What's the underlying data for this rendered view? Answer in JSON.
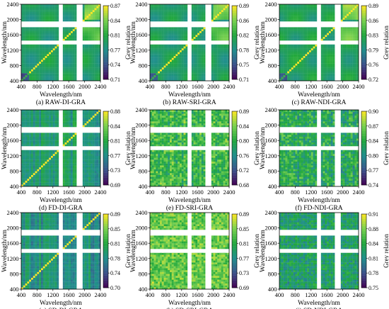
{
  "chart_data": [
    {
      "type": "heatmap",
      "caption": "(a) RAW-DI-GRA",
      "xlabel": "Wavelength/nm",
      "ylabel": "Wavelength/nm",
      "colorbar_label": "Grey relation",
      "xticks": [
        "400",
        "800",
        "1200",
        "1600",
        "2000",
        "2400"
      ],
      "yticks": [
        "400",
        "800",
        "1200",
        "1600",
        "2000",
        "2400"
      ],
      "xlim": [
        400,
        2400
      ],
      "ylim": [
        400,
        2400
      ],
      "colorbar_ticks": [
        "0.87",
        "0.84",
        "0.81",
        "0.77",
        "0.74",
        "0.71"
      ],
      "clim": [
        0.71,
        0.87
      ],
      "base_value": 0.79,
      "texture": "smooth",
      "masked_bands_nm": [
        [
          1350,
          1450
        ],
        [
          1800,
          1950
        ]
      ],
      "colormap": [
        "#440154",
        "#3b528b",
        "#21908d",
        "#22a83d",
        "#7ad151",
        "#fde725"
      ]
    },
    {
      "type": "heatmap",
      "caption": "(b) RAW-SRI-GRA",
      "xlabel": "Wavelength/nm",
      "ylabel": "Wavelength/nm",
      "colorbar_label": "Grey relation",
      "xticks": [
        "400",
        "800",
        "1200",
        "1600",
        "2000",
        "2400"
      ],
      "yticks": [
        "400",
        "800",
        "1200",
        "1600",
        "2000",
        "2400"
      ],
      "xlim": [
        400,
        2400
      ],
      "ylim": [
        400,
        2400
      ],
      "colorbar_ticks": [
        "0.89",
        "0.86",
        "0.82",
        "0.78",
        "0.75",
        "0.71"
      ],
      "clim": [
        0.71,
        0.89
      ],
      "base_value": 0.8,
      "texture": "smooth",
      "masked_bands_nm": [
        [
          1350,
          1450
        ],
        [
          1800,
          1950
        ]
      ],
      "colormap": [
        "#440154",
        "#3b528b",
        "#21908d",
        "#22a83d",
        "#7ad151",
        "#fde725"
      ]
    },
    {
      "type": "heatmap",
      "caption": "(c) RAW-NDI-GRA",
      "xlabel": "Wavelength/nm",
      "ylabel": "Wavelength/nm",
      "colorbar_label": "Grey relation",
      "xticks": [
        "400",
        "800",
        "1200",
        "1600",
        "2000",
        "2400"
      ],
      "yticks": [
        "400",
        "800",
        "1200",
        "1600",
        "2000",
        "2400"
      ],
      "xlim": [
        400,
        2400
      ],
      "ylim": [
        400,
        2400
      ],
      "colorbar_ticks": [
        "0.89",
        "0.86",
        "0.83",
        "0.79",
        "0.76",
        "0.72"
      ],
      "clim": [
        0.72,
        0.89
      ],
      "base_value": 0.81,
      "texture": "smooth",
      "masked_bands_nm": [
        [
          1350,
          1450
        ],
        [
          1800,
          1950
        ]
      ],
      "colormap": [
        "#440154",
        "#3b528b",
        "#21908d",
        "#22a83d",
        "#7ad151",
        "#fde725"
      ]
    },
    {
      "type": "heatmap",
      "caption": "(d) FD-DI-GRA",
      "xlabel": "Wavelength/nm",
      "ylabel": "Wavelength/nm",
      "colorbar_label": "Grey relation",
      "xticks": [
        "400",
        "800",
        "1200",
        "1600",
        "2000",
        "2400"
      ],
      "yticks": [
        "400",
        "800",
        "1200",
        "1600",
        "2000",
        "2400"
      ],
      "xlim": [
        400,
        2400
      ],
      "ylim": [
        400,
        2400
      ],
      "colorbar_ticks": [
        "0.88",
        "0.84",
        "0.81",
        "0.77",
        "0.73",
        "0.69"
      ],
      "clim": [
        0.69,
        0.88
      ],
      "base_value": 0.78,
      "texture": "striped",
      "masked_bands_nm": [
        [
          1350,
          1450
        ],
        [
          1800,
          1950
        ]
      ],
      "colormap": [
        "#440154",
        "#3b528b",
        "#21908d",
        "#22a83d",
        "#7ad151",
        "#fde725"
      ]
    },
    {
      "type": "heatmap",
      "caption": "(e) FD-SRI-GRA",
      "xlabel": "Wavelength/nm",
      "ylabel": "Wavelength/nm",
      "colorbar_label": "Grey relation",
      "xticks": [
        "400",
        "800",
        "1200",
        "1600",
        "2000",
        "2400"
      ],
      "yticks": [
        "400",
        "800",
        "1200",
        "1600",
        "2000",
        "2400"
      ],
      "xlim": [
        400,
        2400
      ],
      "ylim": [
        400,
        2400
      ],
      "colorbar_ticks": [
        "0.89",
        "0.84",
        "0.80",
        "0.76",
        "0.72",
        "0.68"
      ],
      "clim": [
        0.68,
        0.89
      ],
      "base_value": 0.82,
      "texture": "noisy",
      "masked_bands_nm": [
        [
          1350,
          1450
        ],
        [
          1800,
          1950
        ]
      ],
      "colormap": [
        "#440154",
        "#3b528b",
        "#21908d",
        "#22a83d",
        "#7ad151",
        "#fde725"
      ]
    },
    {
      "type": "heatmap",
      "caption": "(f) FD-NDI-GRA",
      "xlabel": "Wavelength/nm",
      "ylabel": "Wavelength/nm",
      "colorbar_label": "Grey relation",
      "xticks": [
        "400",
        "800",
        "1200",
        "1600",
        "2000",
        "2400"
      ],
      "yticks": [
        "400",
        "800",
        "1200",
        "1600",
        "2000",
        "2400"
      ],
      "xlim": [
        400,
        2400
      ],
      "ylim": [
        400,
        2400
      ],
      "colorbar_ticks": [
        "0.90",
        "0.87",
        "0.84",
        "0.80",
        "0.77",
        "0.74"
      ],
      "clim": [
        0.74,
        0.9
      ],
      "base_value": 0.83,
      "texture": "noisy",
      "masked_bands_nm": [
        [
          1350,
          1450
        ],
        [
          1800,
          1950
        ]
      ],
      "colormap": [
        "#440154",
        "#3b528b",
        "#21908d",
        "#22a83d",
        "#7ad151",
        "#fde725"
      ]
    },
    {
      "type": "heatmap",
      "caption": "(g) SD-DI-GRA",
      "xlabel": "Wavelength/nm",
      "ylabel": "Wavelength/nm",
      "colorbar_label": "Grey relation",
      "xticks": [
        "400",
        "800",
        "1200",
        "1600",
        "2000",
        "2400"
      ],
      "yticks": [
        "400",
        "800",
        "1200",
        "1600",
        "2000",
        "2400"
      ],
      "xlim": [
        400,
        2400
      ],
      "ylim": [
        400,
        2400
      ],
      "colorbar_ticks": [
        "0.89",
        "0.85",
        "0.81",
        "0.78",
        "0.74",
        "0.70"
      ],
      "clim": [
        0.7,
        0.89
      ],
      "base_value": 0.78,
      "texture": "striped",
      "masked_bands_nm": [
        [
          1350,
          1450
        ],
        [
          1800,
          1950
        ]
      ],
      "colormap": [
        "#440154",
        "#3b528b",
        "#21908d",
        "#22a83d",
        "#7ad151",
        "#fde725"
      ]
    },
    {
      "type": "heatmap",
      "caption": "(h) SD-SRI-GRA",
      "xlabel": "Wavelength/nm",
      "ylabel": "Wavelength/nm",
      "colorbar_label": "Grey relation",
      "xticks": [
        "400",
        "800",
        "1200",
        "1600",
        "2000",
        "2400"
      ],
      "yticks": [
        "400",
        "800",
        "1200",
        "1600",
        "2000",
        "2400"
      ],
      "xlim": [
        400,
        2400
      ],
      "ylim": [
        400,
        2400
      ],
      "colorbar_ticks": [
        "0.89",
        "0.85",
        "0.81",
        "0.77",
        "0.73",
        "0.69"
      ],
      "clim": [
        0.69,
        0.89
      ],
      "base_value": 0.84,
      "texture": "fine-noise",
      "masked_bands_nm": [
        [
          1350,
          1450
        ],
        [
          1800,
          1950
        ]
      ],
      "colormap": [
        "#440154",
        "#3b528b",
        "#21908d",
        "#22a83d",
        "#7ad151",
        "#fde725"
      ]
    },
    {
      "type": "heatmap",
      "caption": "(i) SD-NDI-GRA",
      "xlabel": "Wavelength/nm",
      "ylabel": "Wavelength/nm",
      "colorbar_label": "Grey relation",
      "xticks": [
        "400",
        "800",
        "1200",
        "1600",
        "2000",
        "2400"
      ],
      "yticks": [
        "400",
        "800",
        "1200",
        "1600",
        "2000",
        "2400"
      ],
      "xlim": [
        400,
        2400
      ],
      "ylim": [
        400,
        2400
      ],
      "colorbar_ticks": [
        "0.91",
        "0.88",
        "0.84",
        "0.81",
        "0.78",
        "0.75"
      ],
      "clim": [
        0.75,
        0.91
      ],
      "base_value": 0.83,
      "texture": "fine-noise",
      "masked_bands_nm": [
        [
          1350,
          1450
        ],
        [
          1800,
          1950
        ]
      ],
      "colormap": [
        "#440154",
        "#3b528b",
        "#21908d",
        "#22a83d",
        "#7ad151",
        "#fde725"
      ]
    }
  ]
}
